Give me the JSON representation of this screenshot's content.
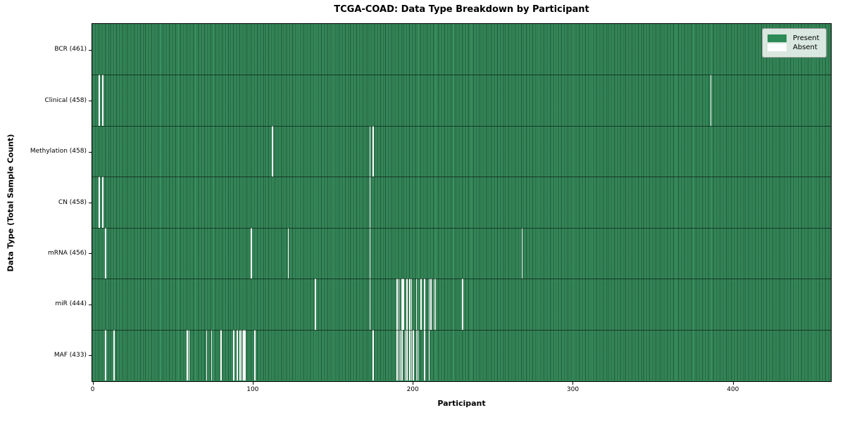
{
  "title": "TCGA-COAD: Data Type Breakdown by Participant",
  "chart_data": {
    "type": "heatmap",
    "title": "TCGA-COAD: Data Type Breakdown by Participant",
    "xlabel": "Participant",
    "ylabel": "Data Type (Total Sample Count)",
    "n_participants": 461,
    "x_range": [
      0,
      461
    ],
    "x_ticks": [
      0,
      100,
      200,
      300,
      400
    ],
    "grid": false,
    "colors": {
      "present": "#2e8b57",
      "absent": "#ffffff",
      "cell_edge": "#0c2e1c",
      "plot_border": "#000000"
    },
    "legend": {
      "position": "upper right",
      "items": [
        {
          "label": "Present",
          "color": "#2e8b57"
        },
        {
          "label": "Absent",
          "color": "#ffffff"
        }
      ]
    },
    "rows": [
      {
        "label": "BCR (461)",
        "data_type": "BCR",
        "total": 461,
        "absent_participants": []
      },
      {
        "label": "Clinical (458)",
        "data_type": "Clinical",
        "total": 458,
        "absent_participants": [
          4,
          6,
          386
        ]
      },
      {
        "label": "Methylation (458)",
        "data_type": "Methylation",
        "total": 458,
        "absent_participants": [
          112,
          173,
          175
        ]
      },
      {
        "label": "CN (458)",
        "data_type": "CN",
        "total": 458,
        "absent_participants": [
          4,
          6,
          173
        ]
      },
      {
        "label": "mRNA (456)",
        "data_type": "mRNA",
        "total": 456,
        "absent_participants": [
          8,
          99,
          122,
          173,
          268
        ]
      },
      {
        "label": "miR (444)",
        "data_type": "miR",
        "total": 444,
        "absent_participants": [
          139,
          173,
          190,
          191,
          193,
          194,
          196,
          198,
          199,
          202,
          205,
          207,
          210,
          211,
          213,
          214,
          231
        ]
      },
      {
        "label": "MAF (433)",
        "data_type": "MAF",
        "total": 433,
        "absent_participants": [
          8,
          13,
          59,
          60,
          71,
          74,
          80,
          88,
          90,
          92,
          93,
          94,
          95,
          101,
          175,
          190,
          191,
          192,
          193,
          195,
          196,
          198,
          199,
          200,
          202,
          203,
          207,
          210
        ]
      }
    ]
  }
}
